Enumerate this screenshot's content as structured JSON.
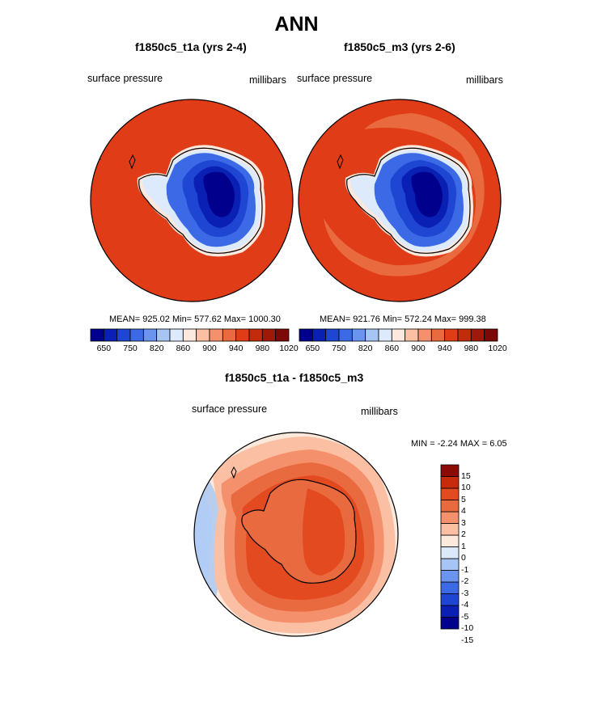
{
  "title": "ANN",
  "palette": {
    "top": [
      "#00008c",
      "#0a1fb4",
      "#1e46d2",
      "#3c6ae6",
      "#6a94ee",
      "#a7c5f4",
      "#ddeafb",
      "#fde8dd",
      "#fbbfa3",
      "#f4916c",
      "#ea6a40",
      "#e03c18",
      "#c42a0c",
      "#a0180a",
      "#7c0808"
    ],
    "diff": [
      "#00008c",
      "#0a1fb4",
      "#1e46d2",
      "#3c6ae6",
      "#6a94ee",
      "#a7c5f4",
      "#dce9fb",
      "#fde9dc",
      "#fbbfa3",
      "#f4916c",
      "#ea6a40",
      "#e44a20",
      "#c82a0c",
      "#8c0a06"
    ]
  },
  "panels": [
    {
      "title": "f1850c5_t1a (yrs 2-4)",
      "left_label": "surface pressure",
      "right_label": "millibars",
      "stats": "MEAN= 925.02  Min= 577.62  Max= 1000.30",
      "colorbar_ticks": [
        "650",
        "750",
        "820",
        "860",
        "900",
        "940",
        "980",
        "1020"
      ]
    },
    {
      "title": "f1850c5_m3 (yrs 2-6)",
      "left_label": "surface pressure",
      "right_label": "millibars",
      "stats": "MEAN= 921.76  Min= 572.24  Max= 999.38",
      "colorbar_ticks": [
        "650",
        "750",
        "820",
        "860",
        "900",
        "940",
        "980",
        "1020"
      ]
    }
  ],
  "diff_panel": {
    "title": "f1850c5_t1a - f1850c5_m3",
    "left_label": "surface pressure",
    "right_label": "millibars",
    "minmax": "MIN =  -2.24 MAX =   6.05",
    "colorbar_labels": [
      "15",
      "10",
      "5",
      "4",
      "3",
      "2",
      "1",
      "0",
      "-1",
      "-2",
      "-3",
      "-4",
      "-5",
      "-10",
      "-15"
    ]
  }
}
